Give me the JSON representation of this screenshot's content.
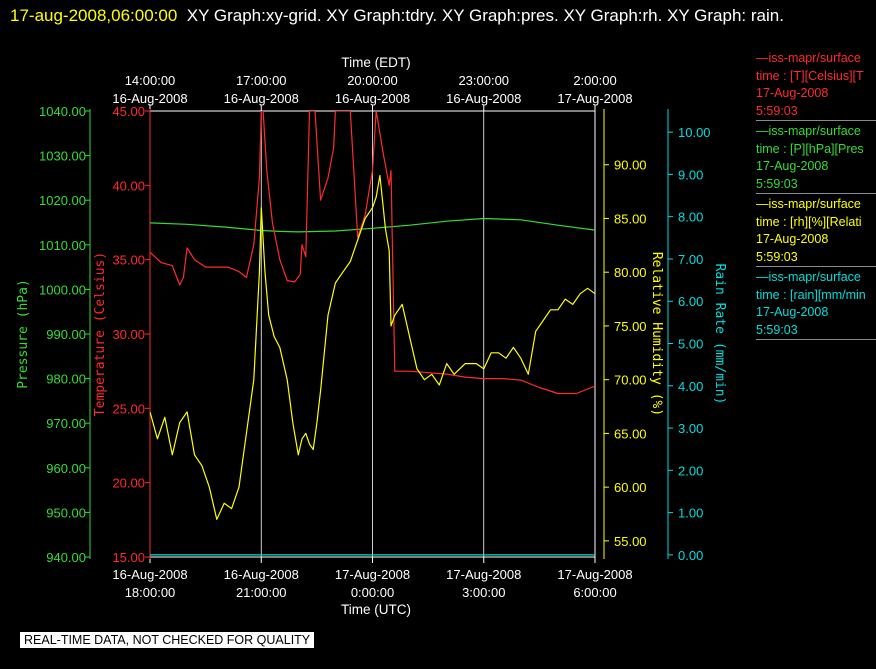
{
  "header": {
    "datetime": "17-aug-2008,06:00:00",
    "titles": "XY Graph:xy-grid.  XY Graph:tdry.  XY Graph:pres.  XY Graph:rh.  XY Graph: rain."
  },
  "legend": [
    {
      "line1": "—iss-mapr/surface",
      "line2": "time : [T][Celsius][T",
      "line3": "17-Aug-2008",
      "line4": "5:59:03",
      "color": "#ff2a2a"
    },
    {
      "line1": "—iss-mapr/surface",
      "line2": "time : [P][hPa][Pres",
      "line3": "17-Aug-2008",
      "line4": "5:59:03",
      "color": "#33dd33"
    },
    {
      "line1": "—iss-mapr/surface",
      "line2": "time : [rh][%][Relati",
      "line3": "17-Aug-2008",
      "line4": "5:59:03",
      "color": "#ffff00"
    },
    {
      "line1": "—iss-mapr/surface",
      "line2": "time : [rain][mm/min",
      "line3": "17-Aug-2008",
      "line4": "5:59:03",
      "color": "#00dddd"
    }
  ],
  "disclaimer": "REAL-TIME DATA, NOT CHECKED FOR QUALITY",
  "chart_data": {
    "type": "line",
    "top_axis": {
      "title": "Time (EDT)",
      "ticks": [
        {
          "hour": 0,
          "line1": "14:00:00",
          "line2": "16-Aug-2008"
        },
        {
          "hour": 3,
          "line1": "17:00:00",
          "line2": "16-Aug-2008"
        },
        {
          "hour": 6,
          "line1": "20:00:00",
          "line2": "16-Aug-2008"
        },
        {
          "hour": 9,
          "line1": "23:00:00",
          "line2": "16-Aug-2008"
        },
        {
          "hour": 12,
          "line1": "2:00:00",
          "line2": "17-Aug-2008"
        }
      ]
    },
    "bottom_axis": {
      "title": "Time (UTC)",
      "xlim_utc": [
        "16-Aug-2008 18:00",
        "17-Aug-2008 06:00"
      ],
      "ticks": [
        {
          "hour": 0,
          "line1": "16-Aug-2008",
          "line2": "18:00:00"
        },
        {
          "hour": 3,
          "line1": "16-Aug-2008",
          "line2": "21:00:00"
        },
        {
          "hour": 6,
          "line1": "17-Aug-2008",
          "line2": "0:00:00"
        },
        {
          "hour": 9,
          "line1": "17-Aug-2008",
          "line2": "3:00:00"
        },
        {
          "hour": 12,
          "line1": "17-Aug-2008",
          "line2": "6:00:00"
        }
      ]
    },
    "grid_hours": [
      3,
      6,
      9,
      12
    ],
    "y_axes": [
      {
        "id": "pressure",
        "label": "Pressure (hPa)",
        "color": "#33dd33",
        "ylim": [
          940,
          1040
        ],
        "ticks": [
          "940.00",
          "950.00",
          "960.00",
          "970.00",
          "980.00",
          "990.00",
          "1000.00",
          "1010.00",
          "1020.00",
          "1030.00",
          "1040.00"
        ]
      },
      {
        "id": "temperature",
        "label": "Temperature (Celsius)",
        "color": "#ff2a2a",
        "ylim": [
          15,
          45
        ],
        "ticks": [
          "15.00",
          "20.00",
          "25.00",
          "30.00",
          "35.00",
          "40.00",
          "45.00"
        ]
      },
      {
        "id": "humidity",
        "label": "Relative Humidity (%)",
        "color": "#ffff00",
        "ylim": [
          53.5,
          95
        ],
        "ticks": [
          "55.00",
          "60.00",
          "65.00",
          "70.00",
          "75.00",
          "80.00",
          "85.00",
          "90.00"
        ]
      },
      {
        "id": "rain",
        "label": "Rain Rate (mm/min)",
        "color": "#00dddd",
        "ylim": [
          -0.05,
          10.5
        ],
        "ticks": [
          "0.00",
          "1.00",
          "2.00",
          "3.00",
          "4.00",
          "5.00",
          "6.00",
          "7.00",
          "8.00",
          "9.00",
          "10.00"
        ]
      }
    ],
    "series": [
      {
        "name": "pres",
        "axis": "pressure",
        "color": "#33dd33",
        "x": [
          0,
          1,
          2,
          3,
          3.5,
          4,
          5,
          6,
          7,
          8,
          9,
          10,
          11,
          12
        ],
        "y": [
          1014.9,
          1014.6,
          1014.0,
          1013.2,
          1013.0,
          1012.9,
          1013.1,
          1013.7,
          1014.4,
          1015.3,
          1015.9,
          1015.6,
          1014.4,
          1013.3
        ]
      },
      {
        "name": "tdry",
        "axis": "temperature",
        "color": "#ff2a2a",
        "x": [
          0,
          0.3,
          0.6,
          0.8,
          0.9,
          1.0,
          1.2,
          1.5,
          1.8,
          2.1,
          2.4,
          2.6,
          2.8,
          2.95,
          3.0,
          3.05,
          3.15,
          3.3,
          3.5,
          3.7,
          3.9,
          4.05,
          4.1,
          4.2,
          4.3,
          4.45,
          4.6,
          4.8,
          4.95,
          5.0,
          5.2,
          5.4,
          5.6,
          5.8,
          6.0,
          6.1,
          6.3,
          6.45,
          6.5,
          6.6,
          7.0,
          7.5,
          8.0,
          8.5,
          9.0,
          9.5,
          10.0,
          10.5,
          11.0,
          11.5,
          12.0
        ],
        "y": [
          35.5,
          34.8,
          34.6,
          33.3,
          33.8,
          35.8,
          35.0,
          34.5,
          34.5,
          34.5,
          34.2,
          33.8,
          36.0,
          40.5,
          45,
          45,
          41.0,
          37.5,
          35.0,
          33.6,
          33.5,
          34.0,
          36.0,
          35.2,
          45,
          45,
          39.0,
          40.5,
          42.5,
          45,
          45,
          45,
          36.5,
          38.0,
          41.0,
          45,
          42.0,
          40.0,
          41.0,
          27.5,
          27.5,
          27.4,
          27.3,
          27.1,
          27.0,
          27.0,
          26.9,
          26.4,
          26.0,
          26.0,
          26.5
        ]
      },
      {
        "name": "rh",
        "axis": "humidity",
        "color": "#ffff00",
        "x": [
          0,
          0.2,
          0.4,
          0.6,
          0.8,
          1.0,
          1.2,
          1.4,
          1.6,
          1.8,
          2.0,
          2.2,
          2.4,
          2.6,
          2.8,
          2.95,
          3.0,
          3.1,
          3.2,
          3.35,
          3.5,
          3.7,
          3.85,
          4.0,
          4.1,
          4.2,
          4.3,
          4.4,
          4.5,
          4.6,
          4.8,
          5.0,
          5.2,
          5.4,
          5.6,
          5.8,
          6.0,
          6.1,
          6.2,
          6.35,
          6.45,
          6.5,
          6.6,
          6.8,
          7.0,
          7.2,
          7.4,
          7.6,
          7.8,
          8.0,
          8.2,
          8.5,
          8.8,
          9.0,
          9.2,
          9.4,
          9.6,
          9.8,
          10.0,
          10.2,
          10.4,
          10.6,
          10.8,
          11.0,
          11.2,
          11.4,
          11.6,
          11.8,
          12.0
        ],
        "y": [
          67.0,
          64.5,
          66.5,
          63.0,
          66.0,
          67.0,
          63.0,
          62.0,
          60.0,
          57.0,
          58.5,
          58.0,
          60.0,
          65.0,
          70.0,
          80.0,
          86.0,
          80.0,
          76.0,
          74.0,
          73.0,
          70.0,
          66.0,
          63.0,
          64.5,
          65.0,
          64.0,
          63.5,
          66.0,
          69.0,
          76.0,
          79.0,
          80.0,
          81.0,
          83.0,
          85.0,
          86.0,
          87.0,
          89.0,
          84.0,
          82.0,
          75.0,
          76.0,
          77.0,
          74.0,
          71.0,
          70.0,
          70.5,
          69.5,
          71.5,
          70.5,
          71.5,
          71.5,
          71.0,
          72.5,
          72.5,
          72.0,
          73.0,
          72.0,
          70.5,
          74.5,
          75.5,
          76.5,
          76.5,
          77.5,
          77.0,
          78.0,
          78.5,
          78.0
        ]
      },
      {
        "name": "rain",
        "axis": "rain",
        "color": "#00dddd",
        "x": [
          0,
          12
        ],
        "y": [
          0.0,
          0.0
        ]
      }
    ]
  }
}
